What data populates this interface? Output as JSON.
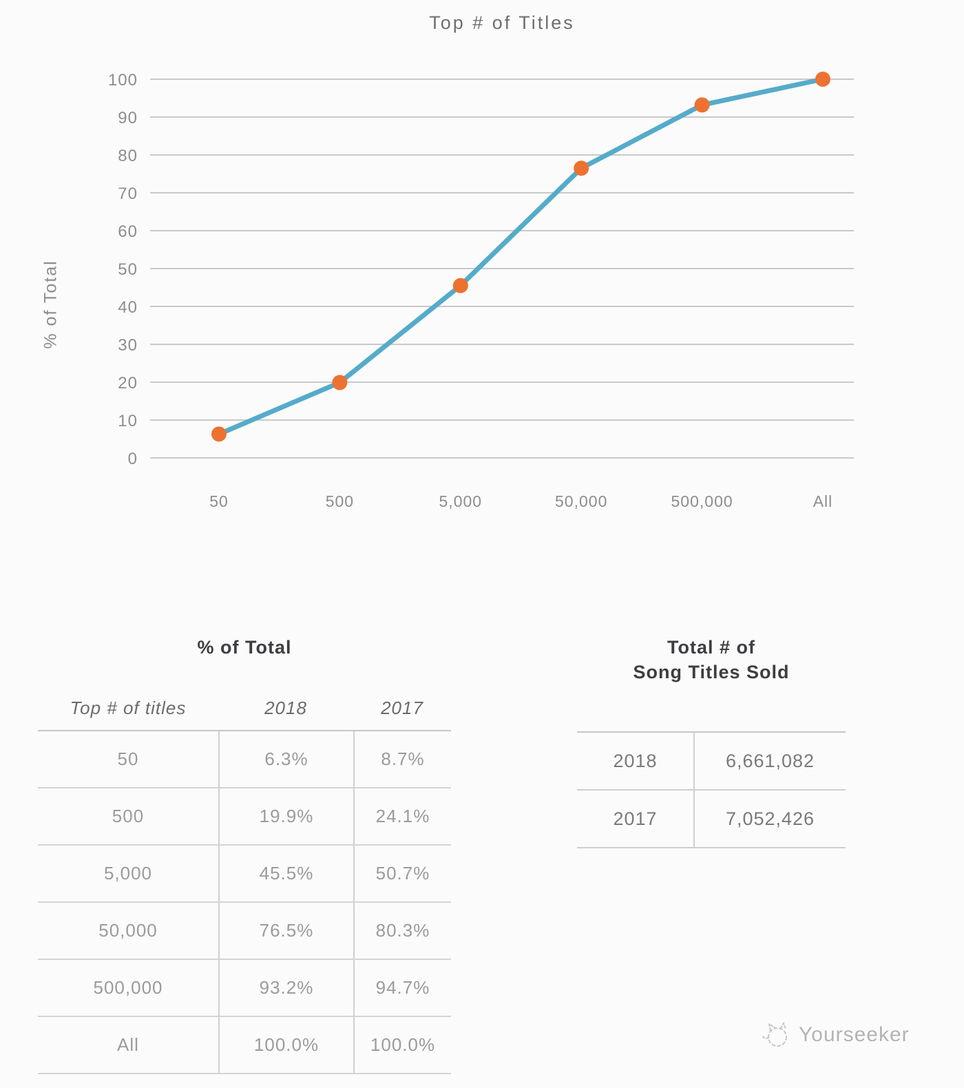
{
  "chart_data": {
    "type": "line",
    "title": "Top # of Titles",
    "ylabel": "% of Total",
    "categories": [
      "50",
      "500",
      "5,000",
      "50,000",
      "500,000",
      "All"
    ],
    "series": [
      {
        "name": "2018",
        "values": [
          6.3,
          19.9,
          45.5,
          76.5,
          93.2,
          100.0
        ]
      }
    ],
    "ylim": [
      0,
      100
    ],
    "ytick_step": 10,
    "grid": true,
    "legend": "none",
    "line_color": "#55abca",
    "marker_color": "#ed7231",
    "grid_color": "#c9c9c9",
    "axis_text_color": "#8d8d8d"
  },
  "tables": {
    "pct_of_total": {
      "title": "% of Total",
      "columns": [
        "Top # of titles",
        "2018",
        "2017"
      ],
      "rows": [
        [
          "50",
          "6.3%",
          "8.7%"
        ],
        [
          "500",
          "19.9%",
          "24.1%"
        ],
        [
          "5,000",
          "45.5%",
          "50.7%"
        ],
        [
          "50,000",
          "76.5%",
          "80.3%"
        ],
        [
          "500,000",
          "93.2%",
          "94.7%"
        ],
        [
          "All",
          "100.0%",
          "100.0%"
        ]
      ]
    },
    "titles_sold": {
      "title_line1": "Total # of",
      "title_line2": "Song Titles Sold",
      "rows": [
        [
          "2018",
          "6,661,082"
        ],
        [
          "2017",
          "7,052,426"
        ]
      ]
    }
  },
  "watermark": {
    "label": "Yourseeker"
  }
}
